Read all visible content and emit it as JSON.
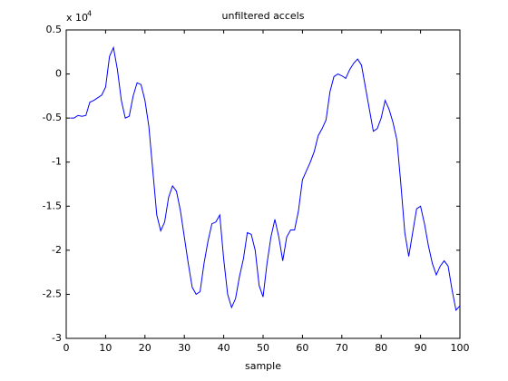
{
  "chart_data": {
    "type": "line",
    "title": "unfiltered accels",
    "x_label": "sample",
    "y_exponent_base": "x 10",
    "y_exponent": "4",
    "x": [
      1,
      2,
      3,
      4,
      5,
      6,
      7,
      8,
      9,
      10,
      11,
      12,
      13,
      14,
      15,
      16,
      17,
      18,
      19,
      20,
      21,
      22,
      23,
      24,
      25,
      26,
      27,
      28,
      29,
      30,
      31,
      32,
      33,
      34,
      35,
      36,
      37,
      38,
      39,
      40,
      41,
      42,
      43,
      44,
      45,
      46,
      47,
      48,
      49,
      50,
      51,
      52,
      53,
      54,
      55,
      56,
      57,
      58,
      59,
      60,
      61,
      62,
      63,
      64,
      65,
      66,
      67,
      68,
      69,
      70,
      71,
      72,
      73,
      74,
      75,
      76,
      77,
      78,
      79,
      80,
      81,
      82,
      83,
      84,
      85,
      86,
      87,
      88,
      89,
      90,
      91,
      92,
      93,
      94,
      95,
      96,
      97,
      98,
      99,
      100
    ],
    "series": [
      {
        "color": "#0000ff",
        "values": [
          -0.5,
          -0.5,
          -0.47,
          -0.48,
          -0.47,
          -0.32,
          -0.3,
          -0.27,
          -0.24,
          -0.15,
          0.2,
          0.3,
          0.05,
          -0.3,
          -0.5,
          -0.48,
          -0.25,
          -0.1,
          -0.12,
          -0.3,
          -0.6,
          -1.1,
          -1.6,
          -1.78,
          -1.68,
          -1.4,
          -1.27,
          -1.33,
          -1.55,
          -1.85,
          -2.15,
          -2.42,
          -2.5,
          -2.47,
          -2.15,
          -1.9,
          -1.7,
          -1.68,
          -1.6,
          -2.1,
          -2.5,
          -2.65,
          -2.55,
          -2.3,
          -2.1,
          -1.8,
          -1.82,
          -2.0,
          -2.4,
          -2.53,
          -2.15,
          -1.85,
          -1.65,
          -1.85,
          -2.12,
          -1.85,
          -1.77,
          -1.77,
          -1.55,
          -1.2,
          -1.1,
          -1.0,
          -0.88,
          -0.7,
          -0.62,
          -0.52,
          -0.2,
          -0.03,
          0.0,
          -0.02,
          -0.05,
          0.05,
          0.12,
          0.17,
          0.1,
          -0.15,
          -0.4,
          -0.65,
          -0.62,
          -0.5,
          -0.3,
          -0.4,
          -0.55,
          -0.75,
          -1.25,
          -1.8,
          -2.07,
          -1.8,
          -1.53,
          -1.5,
          -1.7,
          -1.95,
          -2.15,
          -2.28,
          -2.18,
          -2.12,
          -2.18,
          -2.45,
          -2.68,
          -2.63
        ]
      }
    ],
    "xlim": [
      0,
      100
    ],
    "xticks": [
      0,
      10,
      20,
      30,
      40,
      50,
      60,
      70,
      80,
      90,
      100
    ],
    "ylim": [
      -3,
      0.5
    ],
    "yticks": [
      -3,
      -2.5,
      -2,
      -1.5,
      -1,
      -0.5,
      0,
      0.5
    ],
    "grid": false
  }
}
